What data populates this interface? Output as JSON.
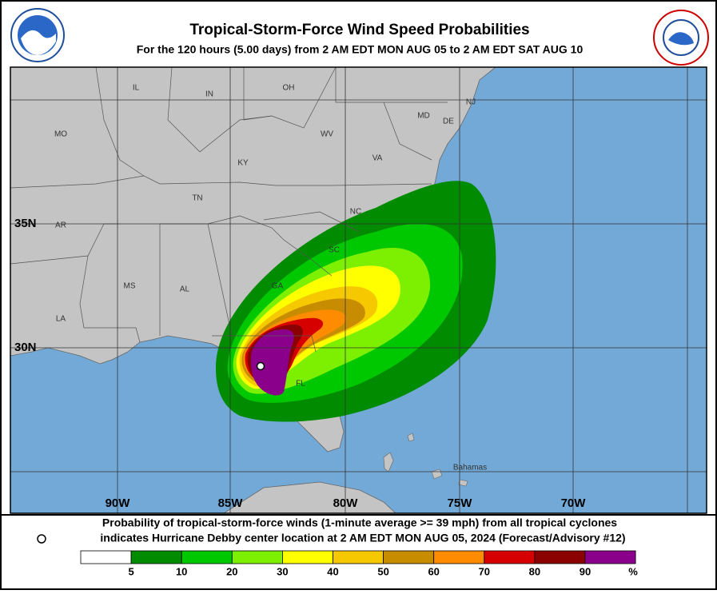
{
  "header": {
    "title": "Tropical-Storm-Force Wind Speed Probabilities",
    "subtitle": "For the 120 hours (5.00 days) from 2 AM EDT MON AUG 05 to 2 AM EDT SAT AUG 10"
  },
  "map": {
    "state_labels": [
      "IL",
      "IN",
      "OH",
      "MO",
      "KY",
      "WV",
      "VA",
      "NJ",
      "MD",
      "DE",
      "TN",
      "NC",
      "AR",
      "SC",
      "MS",
      "AL",
      "GA",
      "LA",
      "FL"
    ],
    "place_labels": [
      "Bahamas"
    ],
    "lat_labels": [
      "35N",
      "30N"
    ],
    "lon_labels": [
      "90W",
      "85W",
      "80W",
      "75W",
      "70W"
    ]
  },
  "footer": {
    "line1": "Probability of tropical-storm-force winds (1-minute average >= 39 mph) from all tropical cyclones",
    "line2": "indicates Hurricane Debby center location at 2 AM EDT MON AUG 05, 2024 (Forecast/Advisory #12)"
  },
  "legend": {
    "labels": [
      5,
      10,
      20,
      30,
      40,
      50,
      60,
      70,
      80,
      90
    ],
    "unit": "%",
    "colors": [
      "#ffffff",
      "#008b00",
      "#00c800",
      "#7cf000",
      "#ffff00",
      "#f5c800",
      "#c88c00",
      "#ff8c00",
      "#d70000",
      "#8b0000",
      "#8b008b"
    ]
  }
}
